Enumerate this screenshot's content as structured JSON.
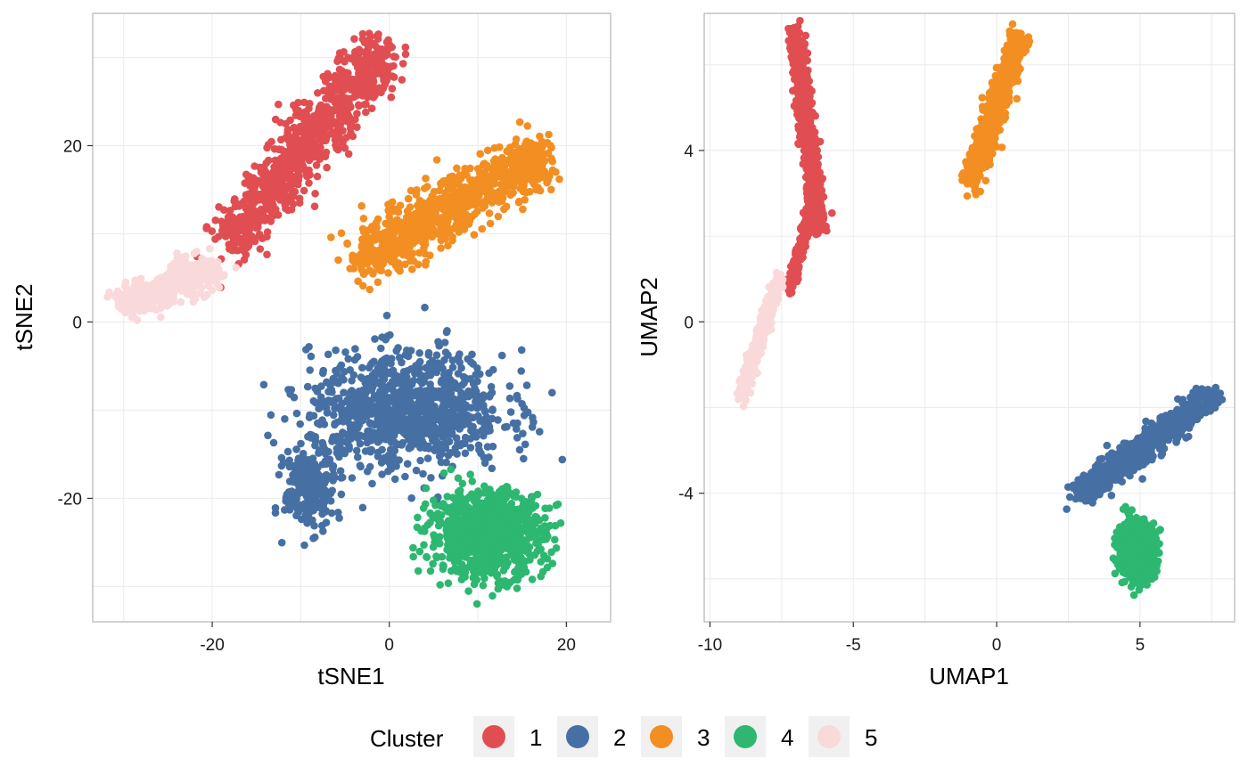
{
  "colors": {
    "1": "#E04E52",
    "2": "#4670A3",
    "3": "#F28E22",
    "4": "#2DB771",
    "5": "#F9D9DA",
    "panel_bg": "#FFFFFF",
    "panel_border": "#B3B3B3",
    "grid": "#EBEBEB",
    "legend_key_bg": "#F0F0F0"
  },
  "legend": {
    "title": "Cluster",
    "placement": "bottom",
    "items": [
      {
        "label": "1",
        "cluster": "1"
      },
      {
        "label": "2",
        "cluster": "2"
      },
      {
        "label": "3",
        "cluster": "3"
      },
      {
        "label": "4",
        "cluster": "4"
      },
      {
        "label": "5",
        "cluster": "5"
      }
    ]
  },
  "chart_data": [
    {
      "type": "scatter",
      "xlabel": "tSNE1",
      "ylabel": "tSNE2",
      "xlim": [
        -33.5,
        25
      ],
      "ylim": [
        -34,
        35
      ],
      "xticks": [
        -20,
        0,
        20
      ],
      "yticks": [
        -20,
        0,
        20
      ],
      "xtick_labels": [
        "-20",
        "0",
        "20"
      ],
      "ytick_labels": [
        "-20",
        "0",
        "20"
      ],
      "grid": true,
      "series": [
        {
          "name": "1",
          "cluster": "1",
          "n": 900,
          "shape": "segment",
          "from": [
            -18,
            9
          ],
          "to": [
            -1,
            31
          ],
          "spread": [
            3.5,
            3.2
          ]
        },
        {
          "name": "3",
          "cluster": "3",
          "n": 900,
          "shape": "segment",
          "from": [
            -3,
            7
          ],
          "to": [
            17,
            19
          ],
          "spread": [
            3.2,
            3.5
          ]
        },
        {
          "name": "2",
          "cluster": "2",
          "n": 1000,
          "shape": "blob",
          "center": [
            2,
            -10
          ],
          "spread": [
            11,
            6.5
          ]
        },
        {
          "name": "2",
          "cluster": "2",
          "n": 250,
          "shape": "blob",
          "center": [
            -9,
            -19
          ],
          "spread": [
            2.8,
            4.5
          ]
        },
        {
          "name": "4",
          "cluster": "4",
          "n": 900,
          "shape": "blob",
          "center": [
            11,
            -24
          ],
          "spread": [
            6.5,
            4.8
          ]
        },
        {
          "name": "5",
          "cluster": "5",
          "n": 450,
          "shape": "segment",
          "from": [
            -30,
            2
          ],
          "to": [
            -20,
            6
          ],
          "spread": [
            2.5,
            2.2
          ]
        }
      ]
    },
    {
      "type": "scatter",
      "xlabel": "UMAP1",
      "ylabel": "UMAP2",
      "xlim": [
        -10.2,
        8.3
      ],
      "ylim": [
        -7,
        7.2
      ],
      "xticks": [
        -10,
        -5,
        0,
        5
      ],
      "yticks": [
        -4,
        0,
        4
      ],
      "xtick_labels": [
        "-10",
        "-5",
        "0",
        "5"
      ],
      "ytick_labels": [
        "-4",
        "0",
        "4"
      ],
      "grid": true,
      "series": [
        {
          "name": "1",
          "cluster": "1",
          "n": 800,
          "shape": "segment",
          "from": [
            -7,
            6.7
          ],
          "to": [
            -6.2,
            2.2
          ],
          "spread": [
            0.28,
            0.35
          ]
        },
        {
          "name": "1",
          "cluster": "1",
          "n": 200,
          "shape": "segment",
          "from": [
            -6.5,
            2.6
          ],
          "to": [
            -7.2,
            0.8
          ],
          "spread": [
            0.18,
            0.25
          ]
        },
        {
          "name": "5",
          "cluster": "5",
          "n": 450,
          "shape": "segment",
          "from": [
            -7.6,
            1.0
          ],
          "to": [
            -8.9,
            -1.7
          ],
          "spread": [
            0.2,
            0.25
          ]
        },
        {
          "name": "3",
          "cluster": "3",
          "n": 900,
          "shape": "segment",
          "from": [
            -0.9,
            3.3
          ],
          "to": [
            0.8,
            6.6
          ],
          "spread": [
            0.35,
            0.35
          ]
        },
        {
          "name": "2",
          "cluster": "2",
          "n": 800,
          "shape": "segment",
          "from": [
            3.0,
            -4.0
          ],
          "to": [
            7.5,
            -1.7
          ],
          "spread": [
            0.55,
            0.3
          ]
        },
        {
          "name": "4",
          "cluster": "4",
          "n": 700,
          "shape": "blob",
          "center": [
            4.9,
            -5.3
          ],
          "spread": [
            0.65,
            0.65
          ]
        }
      ]
    }
  ]
}
